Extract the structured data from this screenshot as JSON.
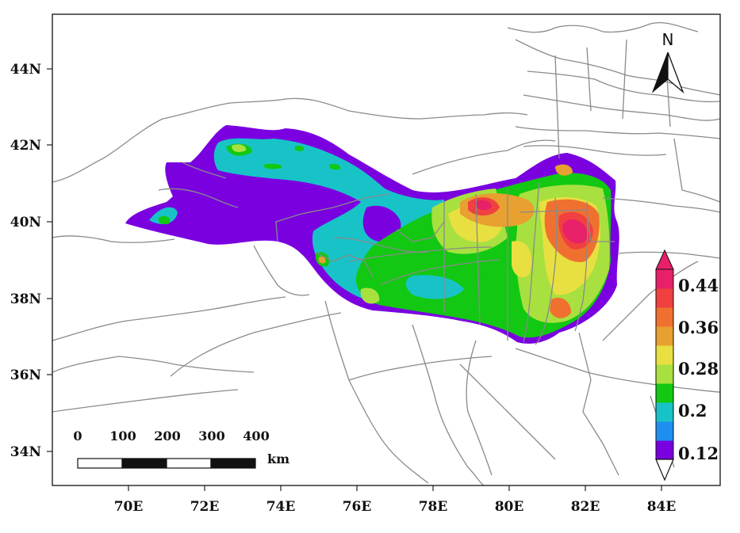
{
  "map": {
    "x_axis_labels": [
      "70E",
      "72E",
      "74E",
      "76E",
      "78E",
      "80E",
      "82E",
      "84E"
    ],
    "y_axis_labels": [
      "34N",
      "36N",
      "38N",
      "40N",
      "42N",
      "44N"
    ],
    "north_arrow_label": "N",
    "scale_bar": {
      "tick_labels": [
        "0",
        "100",
        "200",
        "300",
        "400"
      ],
      "unit": "km"
    },
    "colorbar": {
      "tick_labels": [
        "0.12",
        "0.2",
        "0.28",
        "0.36",
        "0.44"
      ],
      "colors": [
        "#7a00e0",
        "#1e8ff0",
        "#18c3c8",
        "#12c812",
        "#a8e040",
        "#e8e040",
        "#e8a030",
        "#f07030",
        "#f04040",
        "#e8206a"
      ]
    }
  }
}
